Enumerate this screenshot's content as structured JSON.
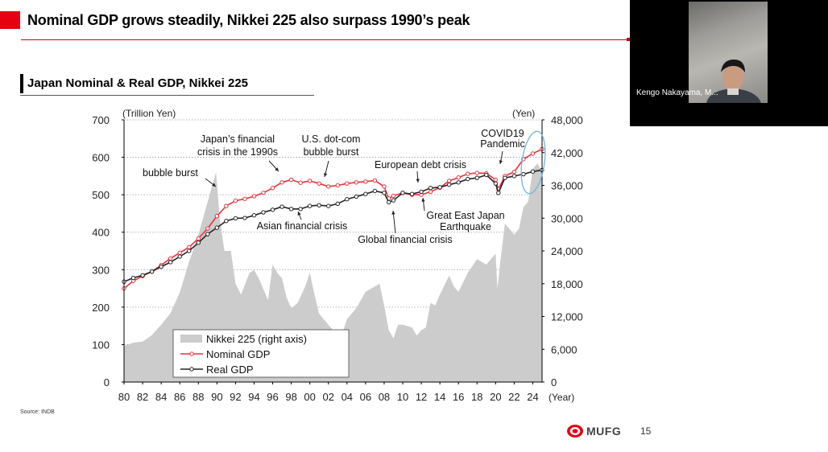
{
  "slide": {
    "title": "Nominal GDP grows steadily, Nikkei 225 also surpass 1990’s peak",
    "subtitle": "Japan Nominal & Real GDP, Nikkei 225",
    "source": "Source: INDB",
    "page_number": "15",
    "logo_text": "MUFG"
  },
  "video": {
    "speaker_name": "Kengo Nakayama, M..."
  },
  "colors": {
    "accent_red": "#e60012",
    "nominal": "#e8323c",
    "real": "#222222",
    "nikkei": "#cccccc"
  },
  "chart_data": {
    "type": "area+line",
    "left_axis_label": "(Trillion Yen)",
    "right_axis_label": "(Yen)",
    "x_axis_label": "(Year)",
    "x_range": [
      1980,
      2025
    ],
    "left_ylim": [
      0,
      700
    ],
    "right_ylim": [
      0,
      48000
    ],
    "left_ticks": [
      "0",
      "100",
      "200",
      "300",
      "400",
      "500",
      "600",
      "700"
    ],
    "right_ticks": [
      "0",
      "6,000",
      "12,000",
      "18,000",
      "24,000",
      "30,000",
      "36,000",
      "42,000",
      "48,000"
    ],
    "x_ticks": [
      "80",
      "82",
      "84",
      "86",
      "88",
      "90",
      "92",
      "94",
      "96",
      "98",
      "00",
      "02",
      "04",
      "06",
      "08",
      "10",
      "12",
      "14",
      "16",
      "18",
      "20",
      "22",
      "24"
    ],
    "series": [
      {
        "name": "Nikkei 225 (right axis)",
        "axis": "right",
        "style": "area",
        "x": [
          1980,
          1981,
          1982,
          1983,
          1984,
          1985,
          1986,
          1987,
          1988,
          1989,
          1989.9,
          1990.3,
          1990.8,
          1991.5,
          1992,
          1992.6,
          1993.5,
          1994,
          1994.5,
          1995.5,
          1996,
          1996.5,
          1997,
          1997.5,
          1998,
          1998.7,
          1999.5,
          2000,
          2000.5,
          2001,
          2002,
          2003,
          2003.3,
          2004,
          2005,
          2006,
          2007,
          2007.5,
          2008,
          2008.5,
          2009,
          2009.5,
          2010,
          2011,
          2011.5,
          2012,
          2012.5,
          2013,
          2013.5,
          2014,
          2015,
          2015.5,
          2016,
          2017,
          2018,
          2019,
          2020,
          2020.2,
          2020.5,
          2021,
          2021.5,
          2022,
          2022.5,
          2023,
          2023.5,
          2024,
          2024.5,
          2025
        ],
        "values": [
          6600,
          7200,
          7400,
          8600,
          10500,
          12600,
          16400,
          22000,
          27000,
          33000,
          38400,
          30000,
          24000,
          24000,
          18000,
          16000,
          20000,
          20500,
          19000,
          15000,
          21500,
          20000,
          19000,
          15500,
          13500,
          14500,
          17500,
          20000,
          16000,
          12500,
          10500,
          8500,
          7900,
          11500,
          13500,
          16500,
          17500,
          18000,
          14000,
          9500,
          8000,
          10500,
          10500,
          10000,
          8500,
          9500,
          10000,
          14500,
          14000,
          16000,
          19500,
          17500,
          16500,
          20000,
          22500,
          21500,
          23500,
          17000,
          22000,
          29000,
          28000,
          27000,
          28000,
          32000,
          33000,
          39000,
          40000,
          38500
        ]
      },
      {
        "name": "Nominal GDP",
        "axis": "left",
        "style": "line-marker",
        "x": [
          1980,
          1981,
          1982,
          1983,
          1984,
          1985,
          1986,
          1987,
          1988,
          1989,
          1990,
          1991,
          1992,
          1993,
          1994,
          1995,
          1996,
          1997,
          1998,
          1999,
          2000,
          2001,
          2002,
          2003,
          2004,
          2005,
          2006,
          2007,
          2008,
          2008.5,
          2009,
          2010,
          2011,
          2012,
          2013,
          2014,
          2015,
          2016,
          2017,
          2018,
          2019,
          2020,
          2020.3,
          2021,
          2022,
          2023,
          2024,
          2025
        ],
        "values": [
          250,
          270,
          283,
          295,
          312,
          330,
          345,
          360,
          383,
          410,
          443,
          470,
          484,
          489,
          496,
          505,
          518,
          533,
          540,
          532,
          537,
          530,
          522,
          525,
          530,
          533,
          535,
          538,
          522,
          490,
          497,
          505,
          500,
          500,
          508,
          519,
          537,
          546,
          556,
          558,
          557,
          540,
          515,
          550,
          561,
          595,
          610,
          622
        ]
      },
      {
        "name": "Real GDP",
        "axis": "left",
        "style": "line-marker",
        "x": [
          1980,
          1981,
          1982,
          1983,
          1984,
          1985,
          1986,
          1987,
          1988,
          1989,
          1990,
          1991,
          1992,
          1993,
          1994,
          1995,
          1996,
          1997,
          1998,
          1999,
          2000,
          2001,
          2002,
          2003,
          2004,
          2005,
          2006,
          2007,
          2008,
          2008.5,
          2009,
          2010,
          2011,
          2012,
          2013,
          2014,
          2015,
          2016,
          2017,
          2018,
          2019,
          2020,
          2020.3,
          2021,
          2022,
          2023,
          2024,
          2025
        ],
        "values": [
          268,
          278,
          285,
          295,
          308,
          320,
          335,
          350,
          372,
          395,
          412,
          430,
          437,
          438,
          445,
          453,
          460,
          468,
          462,
          462,
          470,
          472,
          470,
          476,
          488,
          495,
          502,
          510,
          505,
          480,
          485,
          505,
          502,
          508,
          518,
          520,
          527,
          533,
          542,
          545,
          553,
          530,
          505,
          545,
          550,
          555,
          562,
          566
        ]
      }
    ],
    "annotations": [
      {
        "text": "bubble burst",
        "x": 1990
      },
      {
        "text": "Japan’s financial",
        "x": 1996
      },
      {
        "text": "crisis in the 1990s",
        "x": 1996
      },
      {
        "text": "U.S. dot-com",
        "x": 2001
      },
      {
        "text": "bubble burst",
        "x": 2001
      },
      {
        "text": "European debt crisis",
        "x": 2011
      },
      {
        "text": "COVID19",
        "x": 2020
      },
      {
        "text": "Pandemic",
        "x": 2020
      },
      {
        "text": "Asian financial crisis",
        "x": 1997.5
      },
      {
        "text": "Great East Japan",
        "x": 2011.2
      },
      {
        "text": "Earthquake",
        "x": 2011.2
      },
      {
        "text": "Global financial crisis",
        "x": 2009
      }
    ],
    "legend_position": "bottom-left",
    "grid": "horizontal dotted"
  }
}
